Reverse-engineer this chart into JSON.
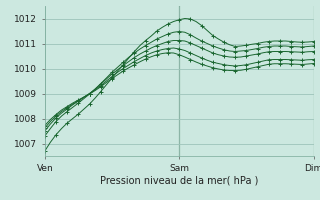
{
  "title": "Pression niveau de la mer( hPa )",
  "bg_color": "#cce8e0",
  "grid_color": "#9dc4ba",
  "line_color": "#1a6630",
  "ylim": [
    1006.5,
    1012.5
  ],
  "yticks": [
    1007,
    1008,
    1009,
    1010,
    1011,
    1012
  ],
  "xtick_labels": [
    "Ven",
    "Sam",
    "Dim"
  ],
  "xtick_positions": [
    0,
    0.5,
    1.0
  ],
  "series": [
    [
      1006.7,
      1007.05,
      1007.35,
      1007.6,
      1007.82,
      1008.0,
      1008.18,
      1008.38,
      1008.58,
      1008.82,
      1009.08,
      1009.35,
      1009.62,
      1009.9,
      1010.15,
      1010.42,
      1010.68,
      1010.92,
      1011.12,
      1011.3,
      1011.5,
      1011.65,
      1011.78,
      1011.88,
      1011.95,
      1012.0,
      1011.98,
      1011.88,
      1011.72,
      1011.52,
      1011.32,
      1011.18,
      1011.05,
      1010.95,
      1010.88,
      1010.9,
      1010.93,
      1010.97,
      1011.0,
      1011.05,
      1011.08,
      1011.1,
      1011.1,
      1011.1,
      1011.08,
      1011.06,
      1011.05,
      1011.06,
      1011.08
    ],
    [
      1007.3,
      1007.6,
      1007.88,
      1008.1,
      1008.28,
      1008.45,
      1008.62,
      1008.8,
      1008.98,
      1009.18,
      1009.4,
      1009.62,
      1009.85,
      1010.05,
      1010.25,
      1010.45,
      1010.62,
      1010.78,
      1010.92,
      1011.05,
      1011.18,
      1011.28,
      1011.38,
      1011.45,
      1011.48,
      1011.45,
      1011.35,
      1011.22,
      1011.1,
      1011.0,
      1010.9,
      1010.82,
      1010.75,
      1010.7,
      1010.68,
      1010.7,
      1010.72,
      1010.76,
      1010.8,
      1010.85,
      1010.88,
      1010.9,
      1010.9,
      1010.9,
      1010.88,
      1010.87,
      1010.86,
      1010.88,
      1010.9
    ],
    [
      1007.5,
      1007.78,
      1008.02,
      1008.22,
      1008.38,
      1008.55,
      1008.7,
      1008.85,
      1009.0,
      1009.18,
      1009.38,
      1009.58,
      1009.78,
      1009.95,
      1010.12,
      1010.28,
      1010.44,
      1010.58,
      1010.7,
      1010.82,
      1010.92,
      1011.0,
      1011.08,
      1011.12,
      1011.12,
      1011.1,
      1011.02,
      1010.92,
      1010.82,
      1010.72,
      1010.62,
      1010.55,
      1010.5,
      1010.46,
      1010.45,
      1010.46,
      1010.5,
      1010.54,
      1010.58,
      1010.63,
      1010.67,
      1010.68,
      1010.68,
      1010.68,
      1010.67,
      1010.66,
      1010.65,
      1010.67,
      1010.68
    ],
    [
      1007.62,
      1007.88,
      1008.1,
      1008.28,
      1008.44,
      1008.58,
      1008.72,
      1008.86,
      1009.0,
      1009.15,
      1009.32,
      1009.5,
      1009.68,
      1009.85,
      1010.0,
      1010.14,
      1010.28,
      1010.4,
      1010.52,
      1010.62,
      1010.7,
      1010.76,
      1010.8,
      1010.82,
      1010.78,
      1010.72,
      1010.62,
      1010.52,
      1010.42,
      1010.33,
      1010.25,
      1010.2,
      1010.15,
      1010.12,
      1010.1,
      1010.12,
      1010.15,
      1010.2,
      1010.25,
      1010.3,
      1010.35,
      1010.36,
      1010.36,
      1010.36,
      1010.35,
      1010.34,
      1010.33,
      1010.35,
      1010.36
    ],
    [
      1007.72,
      1007.96,
      1008.16,
      1008.34,
      1008.48,
      1008.62,
      1008.74,
      1008.86,
      1008.98,
      1009.12,
      1009.27,
      1009.44,
      1009.6,
      1009.75,
      1009.9,
      1010.03,
      1010.15,
      1010.27,
      1010.38,
      1010.47,
      1010.55,
      1010.6,
      1010.63,
      1010.62,
      1010.55,
      1010.46,
      1010.36,
      1010.26,
      1010.17,
      1010.1,
      1010.03,
      1009.98,
      1009.94,
      1009.92,
      1009.92,
      1009.93,
      1009.97,
      1010.02,
      1010.07,
      1010.12,
      1010.17,
      1010.19,
      1010.19,
      1010.19,
      1010.18,
      1010.17,
      1010.16,
      1010.18,
      1010.2
    ]
  ]
}
